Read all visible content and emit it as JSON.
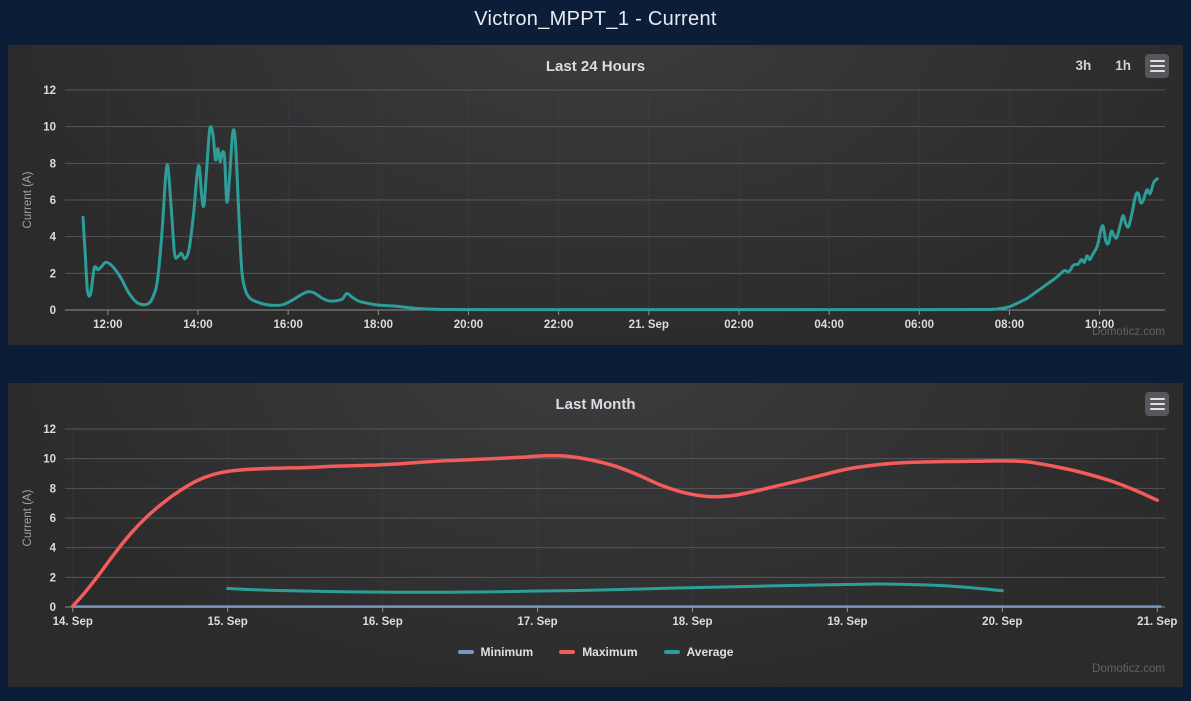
{
  "page": {
    "title": "Victron_MPPT_1 - Current",
    "watermark": "Domoticz.com",
    "background": "#0c1d38",
    "panel_background": "#2b2b2c"
  },
  "toolbar": {
    "range_buttons": [
      {
        "label": "3h"
      },
      {
        "label": "1h"
      }
    ],
    "menu_icon": "hamburger-icon"
  },
  "chart_data": [
    {
      "type": "line",
      "title": "Last 24 Hours",
      "xlabel": "",
      "ylabel": "Current (A)",
      "ylim": [
        0,
        12
      ],
      "yticks": [
        0,
        2,
        4,
        6,
        8,
        10,
        12
      ],
      "xlim": [
        11.05,
        35.45
      ],
      "grid": true,
      "legend_position": "none",
      "xticks": [
        {
          "v": 12,
          "label": "12:00"
        },
        {
          "v": 14,
          "label": "14:00"
        },
        {
          "v": 16,
          "label": "16:00"
        },
        {
          "v": 18,
          "label": "18:00"
        },
        {
          "v": 20,
          "label": "20:00"
        },
        {
          "v": 22,
          "label": "22:00"
        },
        {
          "v": 24,
          "label": "21. Sep"
        },
        {
          "v": 26,
          "label": "02:00"
        },
        {
          "v": 28,
          "label": "04:00"
        },
        {
          "v": 30,
          "label": "06:00"
        },
        {
          "v": 32,
          "label": "08:00"
        },
        {
          "v": 34,
          "label": "10:00"
        }
      ],
      "series": [
        {
          "color": "#2d9e97",
          "width": 3,
          "points": [
            [
              11.45,
              5.05
            ],
            [
              11.5,
              3.0
            ],
            [
              11.55,
              1.05
            ],
            [
              11.62,
              0.9
            ],
            [
              11.7,
              2.3
            ],
            [
              11.78,
              2.2
            ],
            [
              11.87,
              2.4
            ],
            [
              11.95,
              2.6
            ],
            [
              12.05,
              2.5
            ],
            [
              12.15,
              2.25
            ],
            [
              12.3,
              1.7
            ],
            [
              12.45,
              1.0
            ],
            [
              12.6,
              0.5
            ],
            [
              12.75,
              0.3
            ],
            [
              12.9,
              0.35
            ],
            [
              13.0,
              0.7
            ],
            [
              13.1,
              1.6
            ],
            [
              13.2,
              4.2
            ],
            [
              13.28,
              7.2
            ],
            [
              13.33,
              7.85
            ],
            [
              13.4,
              5.8
            ],
            [
              13.48,
              3.1
            ],
            [
              13.55,
              2.9
            ],
            [
              13.63,
              3.1
            ],
            [
              13.71,
              2.8
            ],
            [
              13.8,
              3.3
            ],
            [
              13.9,
              5.2
            ],
            [
              13.98,
              7.4
            ],
            [
              14.03,
              7.8
            ],
            [
              14.08,
              6.3
            ],
            [
              14.13,
              5.7
            ],
            [
              14.19,
              7.6
            ],
            [
              14.26,
              9.85
            ],
            [
              14.33,
              9.6
            ],
            [
              14.39,
              8.2
            ],
            [
              14.44,
              8.8
            ],
            [
              14.49,
              8.1
            ],
            [
              14.54,
              8.6
            ],
            [
              14.59,
              8.3
            ],
            [
              14.64,
              5.9
            ],
            [
              14.7,
              7.2
            ],
            [
              14.77,
              9.65
            ],
            [
              14.83,
              9.2
            ],
            [
              14.9,
              5.5
            ],
            [
              14.97,
              2.2
            ],
            [
              15.05,
              1.1
            ],
            [
              15.15,
              0.65
            ],
            [
              15.3,
              0.45
            ],
            [
              15.5,
              0.3
            ],
            [
              15.7,
              0.25
            ],
            [
              15.9,
              0.3
            ],
            [
              16.1,
              0.55
            ],
            [
              16.3,
              0.85
            ],
            [
              16.45,
              1.0
            ],
            [
              16.6,
              0.9
            ],
            [
              16.75,
              0.65
            ],
            [
              16.9,
              0.5
            ],
            [
              17.05,
              0.5
            ],
            [
              17.2,
              0.6
            ],
            [
              17.3,
              0.9
            ],
            [
              17.42,
              0.7
            ],
            [
              17.55,
              0.5
            ],
            [
              17.7,
              0.4
            ],
            [
              17.9,
              0.3
            ],
            [
              18.1,
              0.25
            ],
            [
              18.4,
              0.2
            ],
            [
              18.7,
              0.12
            ],
            [
              19.0,
              0.06
            ],
            [
              19.5,
              0.03
            ],
            [
              20.5,
              0.02
            ],
            [
              22,
              0.02
            ],
            [
              24,
              0.02
            ],
            [
              26,
              0.02
            ],
            [
              28,
              0.02
            ],
            [
              30,
              0.02
            ],
            [
              31.5,
              0.03
            ],
            [
              31.8,
              0.08
            ],
            [
              32.0,
              0.18
            ],
            [
              32.2,
              0.4
            ],
            [
              32.4,
              0.65
            ],
            [
              32.6,
              1.0
            ],
            [
              32.8,
              1.35
            ],
            [
              33.0,
              1.7
            ],
            [
              33.12,
              1.95
            ],
            [
              33.22,
              2.15
            ],
            [
              33.32,
              2.1
            ],
            [
              33.42,
              2.45
            ],
            [
              33.52,
              2.5
            ],
            [
              33.6,
              2.75
            ],
            [
              33.66,
              2.6
            ],
            [
              33.72,
              2.95
            ],
            [
              33.78,
              2.75
            ],
            [
              33.85,
              3.05
            ],
            [
              33.95,
              3.5
            ],
            [
              34.03,
              4.4
            ],
            [
              34.08,
              4.55
            ],
            [
              34.14,
              3.75
            ],
            [
              34.2,
              3.65
            ],
            [
              34.26,
              4.3
            ],
            [
              34.32,
              4.05
            ],
            [
              34.38,
              3.95
            ],
            [
              34.46,
              4.65
            ],
            [
              34.52,
              5.15
            ],
            [
              34.58,
              4.7
            ],
            [
              34.64,
              4.55
            ],
            [
              34.72,
              5.3
            ],
            [
              34.8,
              6.25
            ],
            [
              34.86,
              6.35
            ],
            [
              34.91,
              5.85
            ],
            [
              34.97,
              6.0
            ],
            [
              35.05,
              6.55
            ],
            [
              35.12,
              6.35
            ],
            [
              35.2,
              6.95
            ],
            [
              35.28,
              7.15
            ]
          ]
        }
      ]
    },
    {
      "type": "line",
      "title": "Last Month",
      "xlabel": "",
      "ylabel": "Current (A)",
      "ylim": [
        0,
        12
      ],
      "yticks": [
        0,
        2,
        4,
        6,
        8,
        10,
        12
      ],
      "xlim": [
        13.95,
        21.05
      ],
      "grid": true,
      "legend_position": "bottom",
      "xticks": [
        {
          "v": 14,
          "label": "14. Sep"
        },
        {
          "v": 15,
          "label": "15. Sep"
        },
        {
          "v": 16,
          "label": "16. Sep"
        },
        {
          "v": 17,
          "label": "17. Sep"
        },
        {
          "v": 18,
          "label": "18. Sep"
        },
        {
          "v": 19,
          "label": "19. Sep"
        },
        {
          "v": 20,
          "label": "20. Sep"
        },
        {
          "v": 21,
          "label": "21. Sep"
        }
      ],
      "series": [
        {
          "name": "Minimum",
          "color": "#7798bf",
          "width": 2.5,
          "points": [
            [
              14.0,
              0.03
            ],
            [
              15,
              0.03
            ],
            [
              16,
              0.03
            ],
            [
              17,
              0.03
            ],
            [
              18,
              0.03
            ],
            [
              19,
              0.03
            ],
            [
              20,
              0.03
            ],
            [
              21.02,
              0.03
            ]
          ]
        },
        {
          "name": "Maximum",
          "color": "#f45b5b",
          "width": 3.5,
          "points": [
            [
              14.0,
              0.05
            ],
            [
              14.08,
              1.0
            ],
            [
              14.17,
              2.2
            ],
            [
              14.27,
              3.6
            ],
            [
              14.37,
              4.9
            ],
            [
              14.47,
              6.0
            ],
            [
              14.58,
              7.0
            ],
            [
              14.7,
              7.9
            ],
            [
              14.82,
              8.6
            ],
            [
              14.95,
              9.05
            ],
            [
              15.1,
              9.25
            ],
            [
              15.3,
              9.35
            ],
            [
              15.5,
              9.4
            ],
            [
              15.7,
              9.5
            ],
            [
              15.9,
              9.55
            ],
            [
              16.1,
              9.65
            ],
            [
              16.3,
              9.8
            ],
            [
              16.5,
              9.9
            ],
            [
              16.7,
              10.0
            ],
            [
              16.9,
              10.1
            ],
            [
              17.05,
              10.2
            ],
            [
              17.2,
              10.15
            ],
            [
              17.35,
              9.9
            ],
            [
              17.5,
              9.5
            ],
            [
              17.65,
              8.9
            ],
            [
              17.8,
              8.2
            ],
            [
              17.95,
              7.7
            ],
            [
              18.1,
              7.45
            ],
            [
              18.25,
              7.5
            ],
            [
              18.4,
              7.8
            ],
            [
              18.6,
              8.3
            ],
            [
              18.8,
              8.8
            ],
            [
              19.0,
              9.3
            ],
            [
              19.2,
              9.6
            ],
            [
              19.4,
              9.75
            ],
            [
              19.6,
              9.8
            ],
            [
              19.8,
              9.82
            ],
            [
              20.0,
              9.85
            ],
            [
              20.15,
              9.8
            ],
            [
              20.3,
              9.55
            ],
            [
              20.5,
              9.1
            ],
            [
              20.7,
              8.5
            ],
            [
              20.85,
              7.9
            ],
            [
              21.0,
              7.2
            ]
          ]
        },
        {
          "name": "Average",
          "color": "#2d9e97",
          "width": 3,
          "points": [
            [
              15.0,
              1.25
            ],
            [
              15.2,
              1.15
            ],
            [
              15.5,
              1.08
            ],
            [
              15.8,
              1.02
            ],
            [
              16.1,
              1.0
            ],
            [
              16.4,
              1.0
            ],
            [
              16.7,
              1.02
            ],
            [
              17.0,
              1.08
            ],
            [
              17.3,
              1.12
            ],
            [
              17.6,
              1.2
            ],
            [
              17.9,
              1.28
            ],
            [
              18.2,
              1.35
            ],
            [
              18.5,
              1.42
            ],
            [
              18.8,
              1.48
            ],
            [
              19.0,
              1.52
            ],
            [
              19.2,
              1.55
            ],
            [
              19.4,
              1.52
            ],
            [
              19.6,
              1.45
            ],
            [
              19.8,
              1.3
            ],
            [
              20.0,
              1.1
            ]
          ]
        }
      ]
    }
  ]
}
